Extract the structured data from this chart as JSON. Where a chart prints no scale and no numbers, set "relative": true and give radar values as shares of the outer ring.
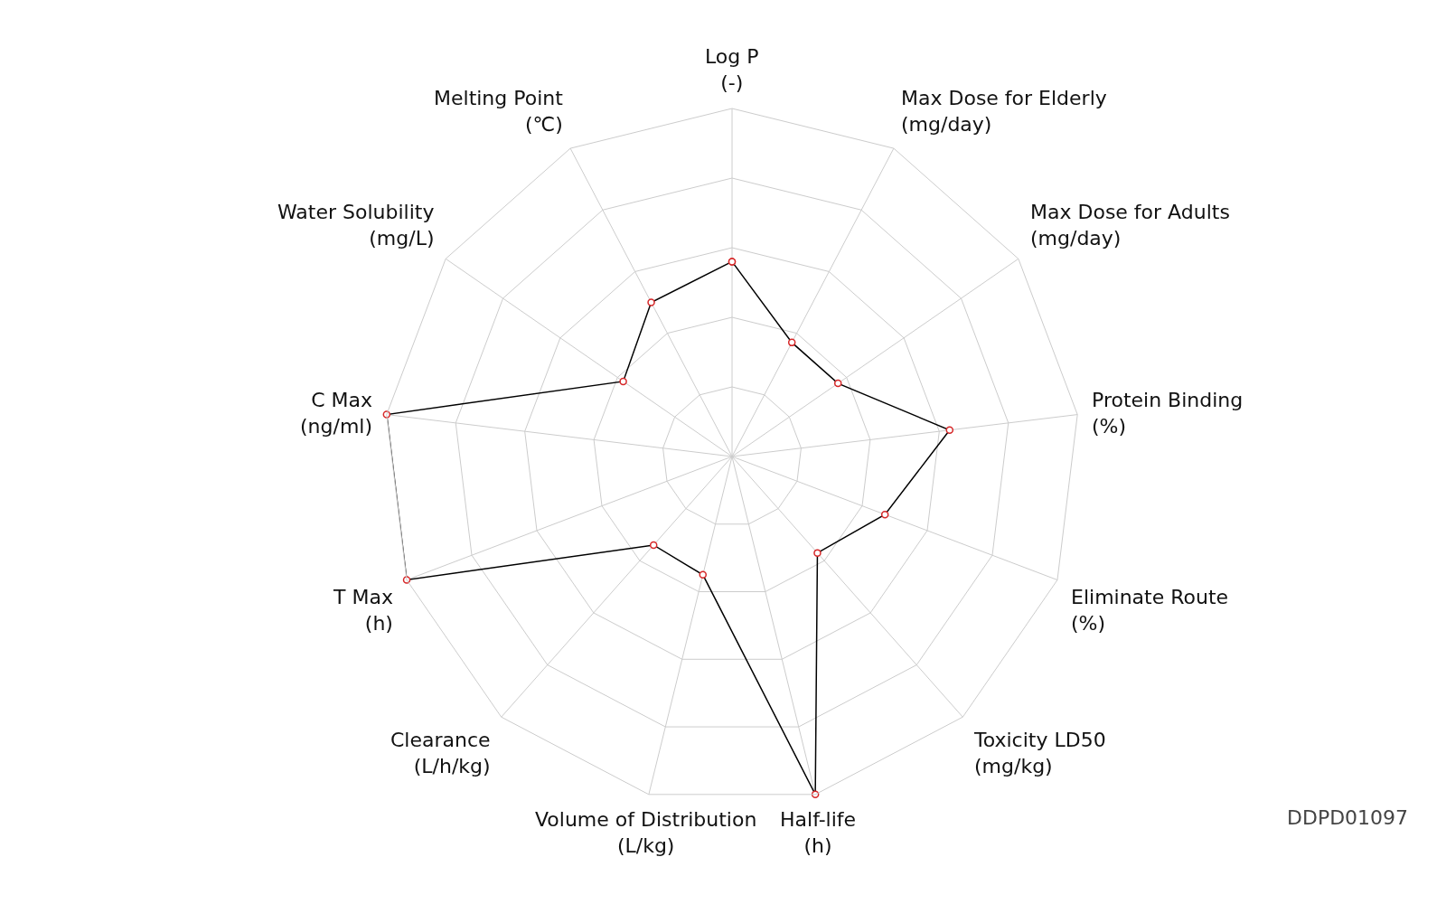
{
  "chart_data": {
    "type": "radar",
    "relative": true,
    "grid": true,
    "marker": "circle",
    "line_style": "solid",
    "categories": [
      "Log P\n(-)",
      "Max Dose for Elderly\n(mg/day)",
      "Max Dose for Adults\n(mg/day)",
      "Protein Binding\n(%)",
      "Eliminate Route\n(%)",
      "Toxicity LD50\n(mg/kg)",
      "Half-life\n(h)",
      "Volume of Distribution\n(L/kg)",
      "Clearance\n(L/h/kg)",
      "T Max\n(h)",
      "C Max\n(ng/ml)",
      "Water Solubility\n(mg/L)",
      "Melting Point\n(℃)"
    ],
    "series": [
      {
        "color": "#000000",
        "values": [
          0.56,
          0.37,
          0.37,
          0.63,
          0.47,
          0.37,
          1.0,
          0.35,
          0.34,
          1.0,
          1.0,
          0.38,
          0.5
        ]
      }
    ],
    "annotations": [
      "DDPD01097"
    ]
  }
}
